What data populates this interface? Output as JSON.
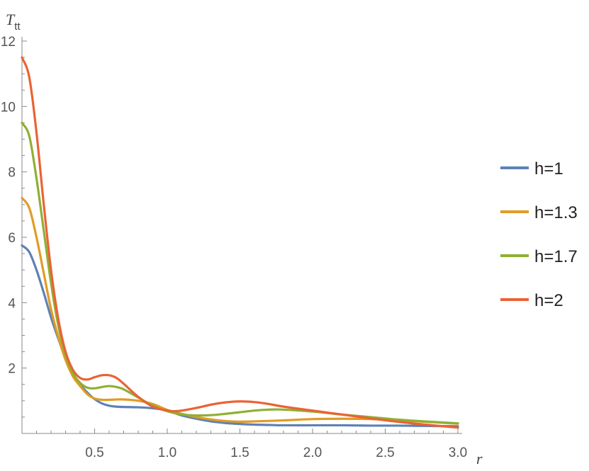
{
  "chart_data": {
    "type": "line",
    "xlabel": "r",
    "ylabel_main": "T",
    "ylabel_sub": "tt",
    "xlim": [
      0,
      3.0
    ],
    "ylim": [
      0,
      12
    ],
    "x_ticks": [
      0.5,
      1.0,
      1.5,
      2.0,
      2.5,
      3.0
    ],
    "x_tick_labels": [
      "0.5",
      "1.0",
      "1.5",
      "2.0",
      "2.5",
      "3.0"
    ],
    "y_ticks": [
      2,
      4,
      6,
      8,
      10,
      12
    ],
    "y_tick_labels": [
      "2",
      "4",
      "6",
      "8",
      "10",
      "12"
    ],
    "legend_position": "right",
    "series": [
      {
        "name": "h=1",
        "color": "#5E81B5",
        "x": [
          0,
          0.05,
          0.1,
          0.15,
          0.2,
          0.25,
          0.3,
          0.35,
          0.4,
          0.45,
          0.5,
          0.55,
          0.6,
          0.65,
          0.7,
          0.8,
          0.9,
          1.0,
          1.1,
          1.2,
          1.3,
          1.4,
          1.5,
          1.6,
          1.7,
          1.8,
          2.0,
          2.2,
          2.4,
          2.6,
          2.8,
          3.0
        ],
        "y": [
          5.75,
          5.55,
          5.0,
          4.3,
          3.55,
          2.9,
          2.3,
          1.85,
          1.5,
          1.25,
          1.05,
          0.92,
          0.85,
          0.82,
          0.81,
          0.8,
          0.77,
          0.7,
          0.55,
          0.45,
          0.37,
          0.32,
          0.29,
          0.27,
          0.26,
          0.25,
          0.25,
          0.25,
          0.24,
          0.24,
          0.23,
          0.22
        ]
      },
      {
        "name": "h=1.3",
        "color": "#E19C24",
        "x": [
          0,
          0.05,
          0.1,
          0.15,
          0.2,
          0.25,
          0.3,
          0.35,
          0.4,
          0.45,
          0.5,
          0.55,
          0.6,
          0.65,
          0.7,
          0.8,
          0.9,
          1.0,
          1.1,
          1.2,
          1.3,
          1.4,
          1.5,
          1.6,
          1.8,
          2.0,
          2.2,
          2.4,
          2.6,
          2.8,
          3.0
        ],
        "y": [
          7.2,
          6.9,
          6.0,
          4.9,
          3.8,
          2.95,
          2.25,
          1.75,
          1.45,
          1.2,
          1.07,
          1.03,
          1.03,
          1.04,
          1.04,
          1.0,
          0.9,
          0.72,
          0.6,
          0.5,
          0.43,
          0.38,
          0.36,
          0.37,
          0.4,
          0.44,
          0.45,
          0.44,
          0.4,
          0.35,
          0.3
        ]
      },
      {
        "name": "h=1.7",
        "color": "#8FB032",
        "x": [
          0,
          0.05,
          0.1,
          0.15,
          0.2,
          0.25,
          0.3,
          0.35,
          0.4,
          0.45,
          0.5,
          0.55,
          0.6,
          0.65,
          0.7,
          0.8,
          0.9,
          1.0,
          1.1,
          1.2,
          1.3,
          1.4,
          1.5,
          1.6,
          1.7,
          1.8,
          2.0,
          2.2,
          2.4,
          2.6,
          2.8,
          3.0
        ],
        "y": [
          9.5,
          9.1,
          7.8,
          6.2,
          4.6,
          3.3,
          2.4,
          1.85,
          1.55,
          1.4,
          1.38,
          1.42,
          1.45,
          1.42,
          1.35,
          1.1,
          0.85,
          0.68,
          0.58,
          0.55,
          0.56,
          0.6,
          0.65,
          0.7,
          0.73,
          0.73,
          0.67,
          0.58,
          0.5,
          0.42,
          0.36,
          0.31
        ]
      },
      {
        "name": "h=2",
        "color": "#EB6235",
        "x": [
          0,
          0.05,
          0.1,
          0.15,
          0.2,
          0.25,
          0.3,
          0.35,
          0.4,
          0.45,
          0.5,
          0.55,
          0.6,
          0.65,
          0.7,
          0.8,
          0.9,
          1.0,
          1.05,
          1.1,
          1.2,
          1.3,
          1.4,
          1.5,
          1.6,
          1.7,
          1.8,
          2.0,
          2.2,
          2.4,
          2.6,
          2.8,
          3.0
        ],
        "y": [
          11.5,
          10.9,
          9.2,
          7.0,
          5.0,
          3.5,
          2.5,
          1.95,
          1.7,
          1.65,
          1.72,
          1.78,
          1.78,
          1.7,
          1.52,
          1.12,
          0.82,
          0.7,
          0.68,
          0.7,
          0.78,
          0.88,
          0.95,
          0.98,
          0.96,
          0.9,
          0.82,
          0.7,
          0.58,
          0.46,
          0.35,
          0.26,
          0.18
        ]
      }
    ]
  }
}
